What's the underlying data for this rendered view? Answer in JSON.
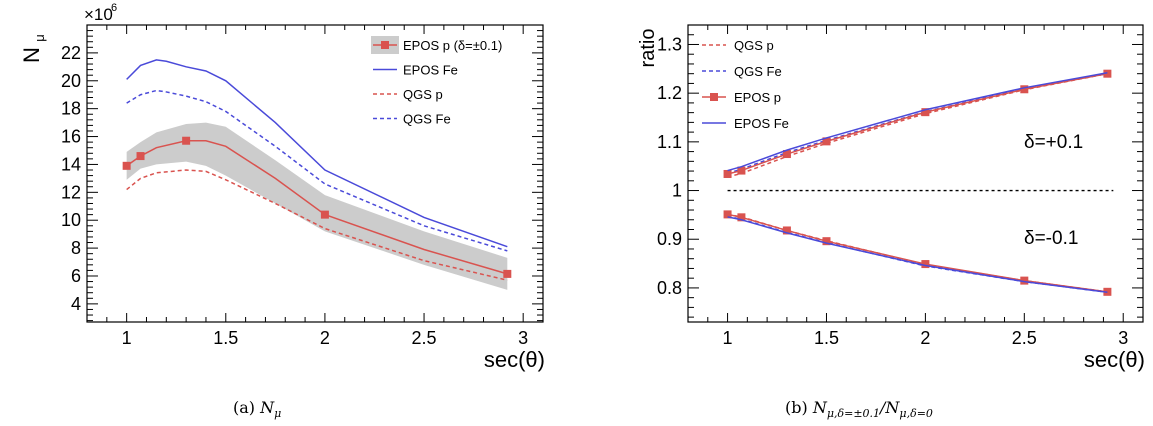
{
  "chart_data": [
    {
      "type": "line",
      "ylabel": "N",
      "ylabel_sub": "μ",
      "exponent_base": "×10",
      "exponent_power": "6",
      "xlabel": "sec(θ)",
      "xlim": [
        0.8,
        3.1
      ],
      "ylim": [
        2.7,
        24
      ],
      "xticks": [
        1,
        1.5,
        2,
        2.5,
        3
      ],
      "xtick_labels": [
        "1",
        "1.5",
        "2",
        "2.5",
        "3"
      ],
      "yticks": [
        4,
        6,
        8,
        10,
        12,
        14,
        16,
        18,
        20,
        22
      ],
      "ytick_labels": [
        "4",
        "6",
        "8",
        "10",
        "12",
        "14",
        "16",
        "18",
        "20",
        "22"
      ],
      "legend_position": "top-right",
      "band": {
        "name": "EPOS p (δ=±0.1)",
        "x": [
          1.0,
          1.07,
          1.15,
          1.3,
          1.4,
          1.5,
          1.75,
          2.0,
          2.5,
          2.92
        ],
        "lower": [
          12.9,
          13.7,
          14.0,
          14.2,
          13.9,
          13.2,
          11.2,
          9.2,
          6.8,
          5.0
        ],
        "upper": [
          14.9,
          15.6,
          16.3,
          16.9,
          17.0,
          16.7,
          14.3,
          11.8,
          9.2,
          7.3
        ]
      },
      "series": [
        {
          "name": "EPOS p (δ=±0.1)",
          "color": "#d9534f",
          "style": "solid",
          "markers": true,
          "x": [
            1.0,
            1.07,
            1.15,
            1.3,
            1.4,
            1.5,
            1.75,
            2.0,
            2.5,
            2.92
          ],
          "y": [
            13.9,
            14.6,
            15.2,
            15.7,
            15.7,
            15.3,
            13.0,
            10.4,
            7.9,
            6.15
          ],
          "marker_x": [
            1.0,
            1.07,
            1.3,
            2.0,
            2.92
          ]
        },
        {
          "name": "EPOS Fe",
          "color": "#4a4ad9",
          "style": "solid",
          "markers": false,
          "x": [
            1.0,
            1.07,
            1.15,
            1.2,
            1.3,
            1.4,
            1.5,
            1.75,
            2.0,
            2.5,
            2.92
          ],
          "y": [
            20.1,
            21.1,
            21.5,
            21.4,
            21.0,
            20.7,
            20.0,
            17.0,
            13.6,
            10.2,
            8.1
          ]
        },
        {
          "name": "QGS p",
          "color": "#d9534f",
          "style": "dashed",
          "markers": false,
          "x": [
            1.0,
            1.07,
            1.15,
            1.3,
            1.4,
            1.5,
            1.75,
            2.0,
            2.5,
            2.92
          ],
          "y": [
            12.2,
            13.0,
            13.4,
            13.6,
            13.5,
            12.9,
            11.2,
            9.4,
            7.1,
            5.7
          ]
        },
        {
          "name": "QGS Fe",
          "color": "#4a4ad9",
          "style": "dashed",
          "markers": false,
          "x": [
            1.0,
            1.07,
            1.15,
            1.2,
            1.3,
            1.4,
            1.5,
            1.75,
            2.0,
            2.5,
            2.92
          ],
          "y": [
            18.4,
            19.0,
            19.3,
            19.2,
            18.9,
            18.5,
            17.8,
            15.3,
            12.6,
            9.6,
            7.8
          ]
        }
      ],
      "caption_label": "(a)",
      "caption_symbol": "N",
      "caption_sub": "μ"
    },
    {
      "type": "line",
      "ylabel": "ratio",
      "xlabel": "sec(θ)",
      "xlim": [
        0.8,
        3.1
      ],
      "ylim": [
        0.73,
        1.34
      ],
      "xticks": [
        1,
        1.5,
        2,
        2.5,
        3
      ],
      "xtick_labels": [
        "1",
        "1.5",
        "2",
        "2.5",
        "3"
      ],
      "yticks": [
        0.8,
        0.9,
        1.0,
        1.1,
        1.2,
        1.3
      ],
      "ytick_labels": [
        "0.8",
        "0.9",
        "1",
        "1.1",
        "1.2",
        "1.3"
      ],
      "legend_position": "top-left",
      "reference_line": 1.0,
      "annotations": [
        "δ=+0.1",
        "δ=-0.1"
      ],
      "series": [
        {
          "name": "QGS p",
          "color": "#d9534f",
          "style": "dashed",
          "markers": false,
          "x": [
            1.0,
            1.07,
            1.3,
            1.5,
            2.0,
            2.5,
            2.92
          ],
          "y": [
            1.028,
            1.035,
            1.07,
            1.097,
            1.158,
            1.207,
            1.24
          ]
        },
        {
          "name": "QGS Fe",
          "color": "#4a4ad9",
          "style": "dashed",
          "markers": false,
          "x": [
            1.0,
            1.07,
            1.3,
            1.5,
            2.0,
            2.5,
            2.92
          ],
          "y": [
            1.035,
            1.044,
            1.078,
            1.103,
            1.162,
            1.209,
            1.24
          ]
        },
        {
          "name": "EPOS p",
          "color": "#d9534f",
          "style": "solid",
          "markers": true,
          "x": [
            1.0,
            1.07,
            1.3,
            1.5,
            2.0,
            2.5,
            2.92
          ],
          "y": [
            1.034,
            1.041,
            1.075,
            1.101,
            1.161,
            1.208,
            1.24
          ]
        },
        {
          "name": "EPOS Fe",
          "color": "#4a4ad9",
          "style": "solid",
          "markers": false,
          "x": [
            1.0,
            1.07,
            1.3,
            1.5,
            2.0,
            2.5,
            2.92
          ],
          "y": [
            1.041,
            1.049,
            1.083,
            1.108,
            1.166,
            1.211,
            1.242
          ]
        },
        {
          "name": "QGS p (δ=-0.1)",
          "legend": false,
          "color": "#d9534f",
          "style": "dashed",
          "markers": false,
          "x": [
            1.0,
            1.07,
            1.3,
            1.5,
            2.0,
            2.5,
            2.92
          ],
          "y": [
            0.951,
            0.946,
            0.918,
            0.897,
            0.848,
            0.815,
            0.792
          ]
        },
        {
          "name": "QGS Fe (δ=-0.1)",
          "legend": false,
          "color": "#4a4ad9",
          "style": "dashed",
          "markers": false,
          "x": [
            1.0,
            1.07,
            1.3,
            1.5,
            2.0,
            2.5,
            2.92
          ],
          "y": [
            0.947,
            0.941,
            0.914,
            0.893,
            0.845,
            0.813,
            0.791
          ]
        },
        {
          "name": "EPOS p (δ=-0.1)",
          "legend": false,
          "color": "#d9534f",
          "style": "solid",
          "markers": true,
          "x": [
            1.0,
            1.07,
            1.3,
            1.5,
            2.0,
            2.5,
            2.92
          ],
          "y": [
            0.951,
            0.945,
            0.918,
            0.896,
            0.849,
            0.815,
            0.792
          ]
        },
        {
          "name": "EPOS Fe (δ=-0.1)",
          "legend": false,
          "color": "#4a4ad9",
          "style": "solid",
          "markers": false,
          "x": [
            1.0,
            1.07,
            1.3,
            1.5,
            2.0,
            2.5,
            2.92
          ],
          "y": [
            0.946,
            0.94,
            0.913,
            0.892,
            0.846,
            0.813,
            0.791
          ]
        }
      ],
      "caption_label": "(b)",
      "caption_symbol": "N",
      "caption_sub": "μ,δ=±0.1",
      "caption_sep": "/",
      "caption_symbol2": "N",
      "caption_sub2": "μ,δ=0"
    }
  ]
}
